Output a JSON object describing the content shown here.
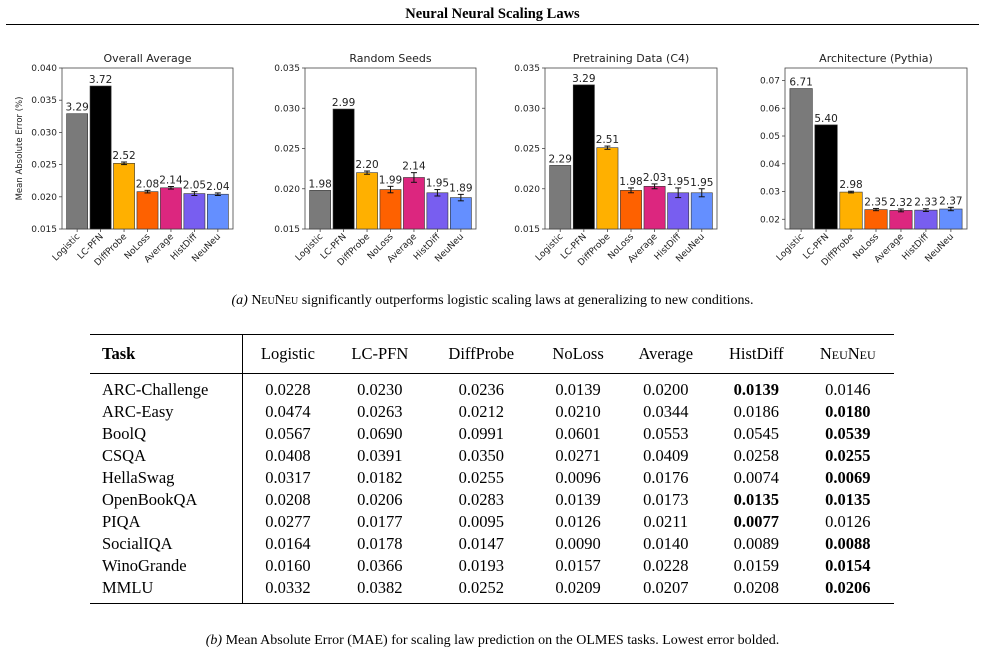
{
  "figure_title": "Neural Neural Scaling Laws",
  "caption_a": {
    "label": "(a)",
    "name_1": "Neu",
    "name_2": "Neu",
    "text": "significantly outperforms logistic scaling laws at generalizing to new conditions."
  },
  "caption_b": {
    "label": "(b)",
    "text": "Mean Absolute Error (MAE) for scaling law prediction on the OLMES tasks. Lowest error bolded."
  },
  "colors": {
    "Logistic": "#7a7a7a",
    "LC-PFN": "#000000",
    "DiffProbe": "#ffb000",
    "NoLoss": "#fe6100",
    "Average": "#dc267f",
    "HistDiff": "#785ef0",
    "NeuNeu": "#648fff"
  },
  "chart_data": [
    {
      "type": "bar",
      "title": "Overall Average",
      "ylabel": "Mean Absolute Error (%)",
      "xlabel": "",
      "categories": [
        "Logistic",
        "LC-PFN",
        "DiffProbe",
        "NoLoss",
        "Average",
        "HistDiff",
        "NeuNeu"
      ],
      "values": [
        0.0329,
        0.0372,
        0.0252,
        0.0208,
        0.0214,
        0.0205,
        0.0204
      ],
      "errors": [
        0,
        0,
        0.0002,
        0.0002,
        0.0002,
        0.0003,
        0.0002
      ],
      "data_labels": [
        "3.29",
        "3.72",
        "2.52",
        "2.08",
        "2.14",
        "2.05",
        "2.04"
      ],
      "ylim": [
        0.015,
        0.04
      ],
      "yticks": [
        "0.015",
        "0.020",
        "0.025",
        "0.030",
        "0.035",
        "0.040"
      ],
      "grid": false
    },
    {
      "type": "bar",
      "title": "Random Seeds",
      "ylabel": "",
      "xlabel": "",
      "categories": [
        "Logistic",
        "LC-PFN",
        "DiffProbe",
        "NoLoss",
        "Average",
        "HistDiff",
        "NeuNeu"
      ],
      "values": [
        0.0198,
        0.0299,
        0.022,
        0.0199,
        0.0214,
        0.0195,
        0.0189
      ],
      "errors": [
        0,
        0,
        0.0002,
        0.0004,
        0.0006,
        0.0004,
        0.0004
      ],
      "data_labels": [
        "1.98",
        "2.99",
        "2.20",
        "1.99",
        "2.14",
        "1.95",
        "1.89"
      ],
      "ylim": [
        0.015,
        0.035
      ],
      "yticks": [
        "0.015",
        "0.020",
        "0.025",
        "0.030",
        "0.035"
      ],
      "grid": false
    },
    {
      "type": "bar",
      "title": "Pretraining Data (C4)",
      "ylabel": "",
      "xlabel": "",
      "categories": [
        "Logistic",
        "LC-PFN",
        "DiffProbe",
        "NoLoss",
        "Average",
        "HistDiff",
        "NeuNeu"
      ],
      "values": [
        0.0229,
        0.0329,
        0.0251,
        0.0198,
        0.0203,
        0.0195,
        0.0195
      ],
      "errors": [
        0,
        0,
        0.0002,
        0.0003,
        0.0003,
        0.0006,
        0.0005
      ],
      "data_labels": [
        "2.29",
        "3.29",
        "2.51",
        "1.98",
        "2.03",
        "1.95",
        "1.95"
      ],
      "ylim": [
        0.015,
        0.035
      ],
      "yticks": [
        "0.015",
        "0.020",
        "0.025",
        "0.030",
        "0.035"
      ],
      "grid": false
    },
    {
      "type": "bar",
      "title": "Architecture (Pythia)",
      "ylabel": "",
      "xlabel": "",
      "categories": [
        "Logistic",
        "LC-PFN",
        "DiffProbe",
        "NoLoss",
        "Average",
        "HistDiff",
        "NeuNeu"
      ],
      "values": [
        0.0671,
        0.054,
        0.0298,
        0.0235,
        0.0232,
        0.0233,
        0.0237
      ],
      "errors": [
        0,
        0,
        0.0003,
        0.0004,
        0.0005,
        0.0005,
        0.0006
      ],
      "data_labels": [
        "6.71",
        "5.40",
        "2.98",
        "2.35",
        "2.32",
        "2.33",
        "2.37"
      ],
      "ylim": [
        0.0165,
        0.0745
      ],
      "yticks": [
        "0.02",
        "0.03",
        "0.04",
        "0.05",
        "0.06",
        "0.07"
      ],
      "grid": false
    },
    {
      "type": "table",
      "columns": [
        "Task",
        "Logistic",
        "LC-PFN",
        "DiffProbe",
        "NoLoss",
        "Average",
        "HistDiff",
        "NeuNeu"
      ],
      "rows": [
        {
          "task": "ARC-Challenge",
          "values": [
            "0.0228",
            "0.0230",
            "0.0236",
            "0.0139",
            "0.0200",
            "0.0139",
            "0.0146"
          ],
          "bold": [
            5
          ]
        },
        {
          "task": "ARC-Easy",
          "values": [
            "0.0474",
            "0.0263",
            "0.0212",
            "0.0210",
            "0.0344",
            "0.0186",
            "0.0180"
          ],
          "bold": [
            6
          ]
        },
        {
          "task": "BoolQ",
          "values": [
            "0.0567",
            "0.0690",
            "0.0991",
            "0.0601",
            "0.0553",
            "0.0545",
            "0.0539"
          ],
          "bold": [
            6
          ]
        },
        {
          "task": "CSQA",
          "values": [
            "0.0408",
            "0.0391",
            "0.0350",
            "0.0271",
            "0.0409",
            "0.0258",
            "0.0255"
          ],
          "bold": [
            6
          ]
        },
        {
          "task": "HellaSwag",
          "values": [
            "0.0317",
            "0.0182",
            "0.0255",
            "0.0096",
            "0.0176",
            "0.0074",
            "0.0069"
          ],
          "bold": [
            6
          ]
        },
        {
          "task": "OpenBookQA",
          "values": [
            "0.0208",
            "0.0206",
            "0.0283",
            "0.0139",
            "0.0173",
            "0.0135",
            "0.0135"
          ],
          "bold": [
            5,
            6
          ]
        },
        {
          "task": "PIQA",
          "values": [
            "0.0277",
            "0.0177",
            "0.0095",
            "0.0126",
            "0.0211",
            "0.0077",
            "0.0126"
          ],
          "bold": [
            5
          ]
        },
        {
          "task": "SocialIQA",
          "values": [
            "0.0164",
            "0.0178",
            "0.0147",
            "0.0090",
            "0.0140",
            "0.0089",
            "0.0088"
          ],
          "bold": [
            6
          ]
        },
        {
          "task": "WinoGrande",
          "values": [
            "0.0160",
            "0.0366",
            "0.0193",
            "0.0157",
            "0.0228",
            "0.0159",
            "0.0154"
          ],
          "bold": [
            6
          ]
        },
        {
          "task": "MMLU",
          "values": [
            "0.0332",
            "0.0382",
            "0.0252",
            "0.0209",
            "0.0207",
            "0.0208",
            "0.0206"
          ],
          "bold": [
            6
          ]
        }
      ]
    }
  ]
}
